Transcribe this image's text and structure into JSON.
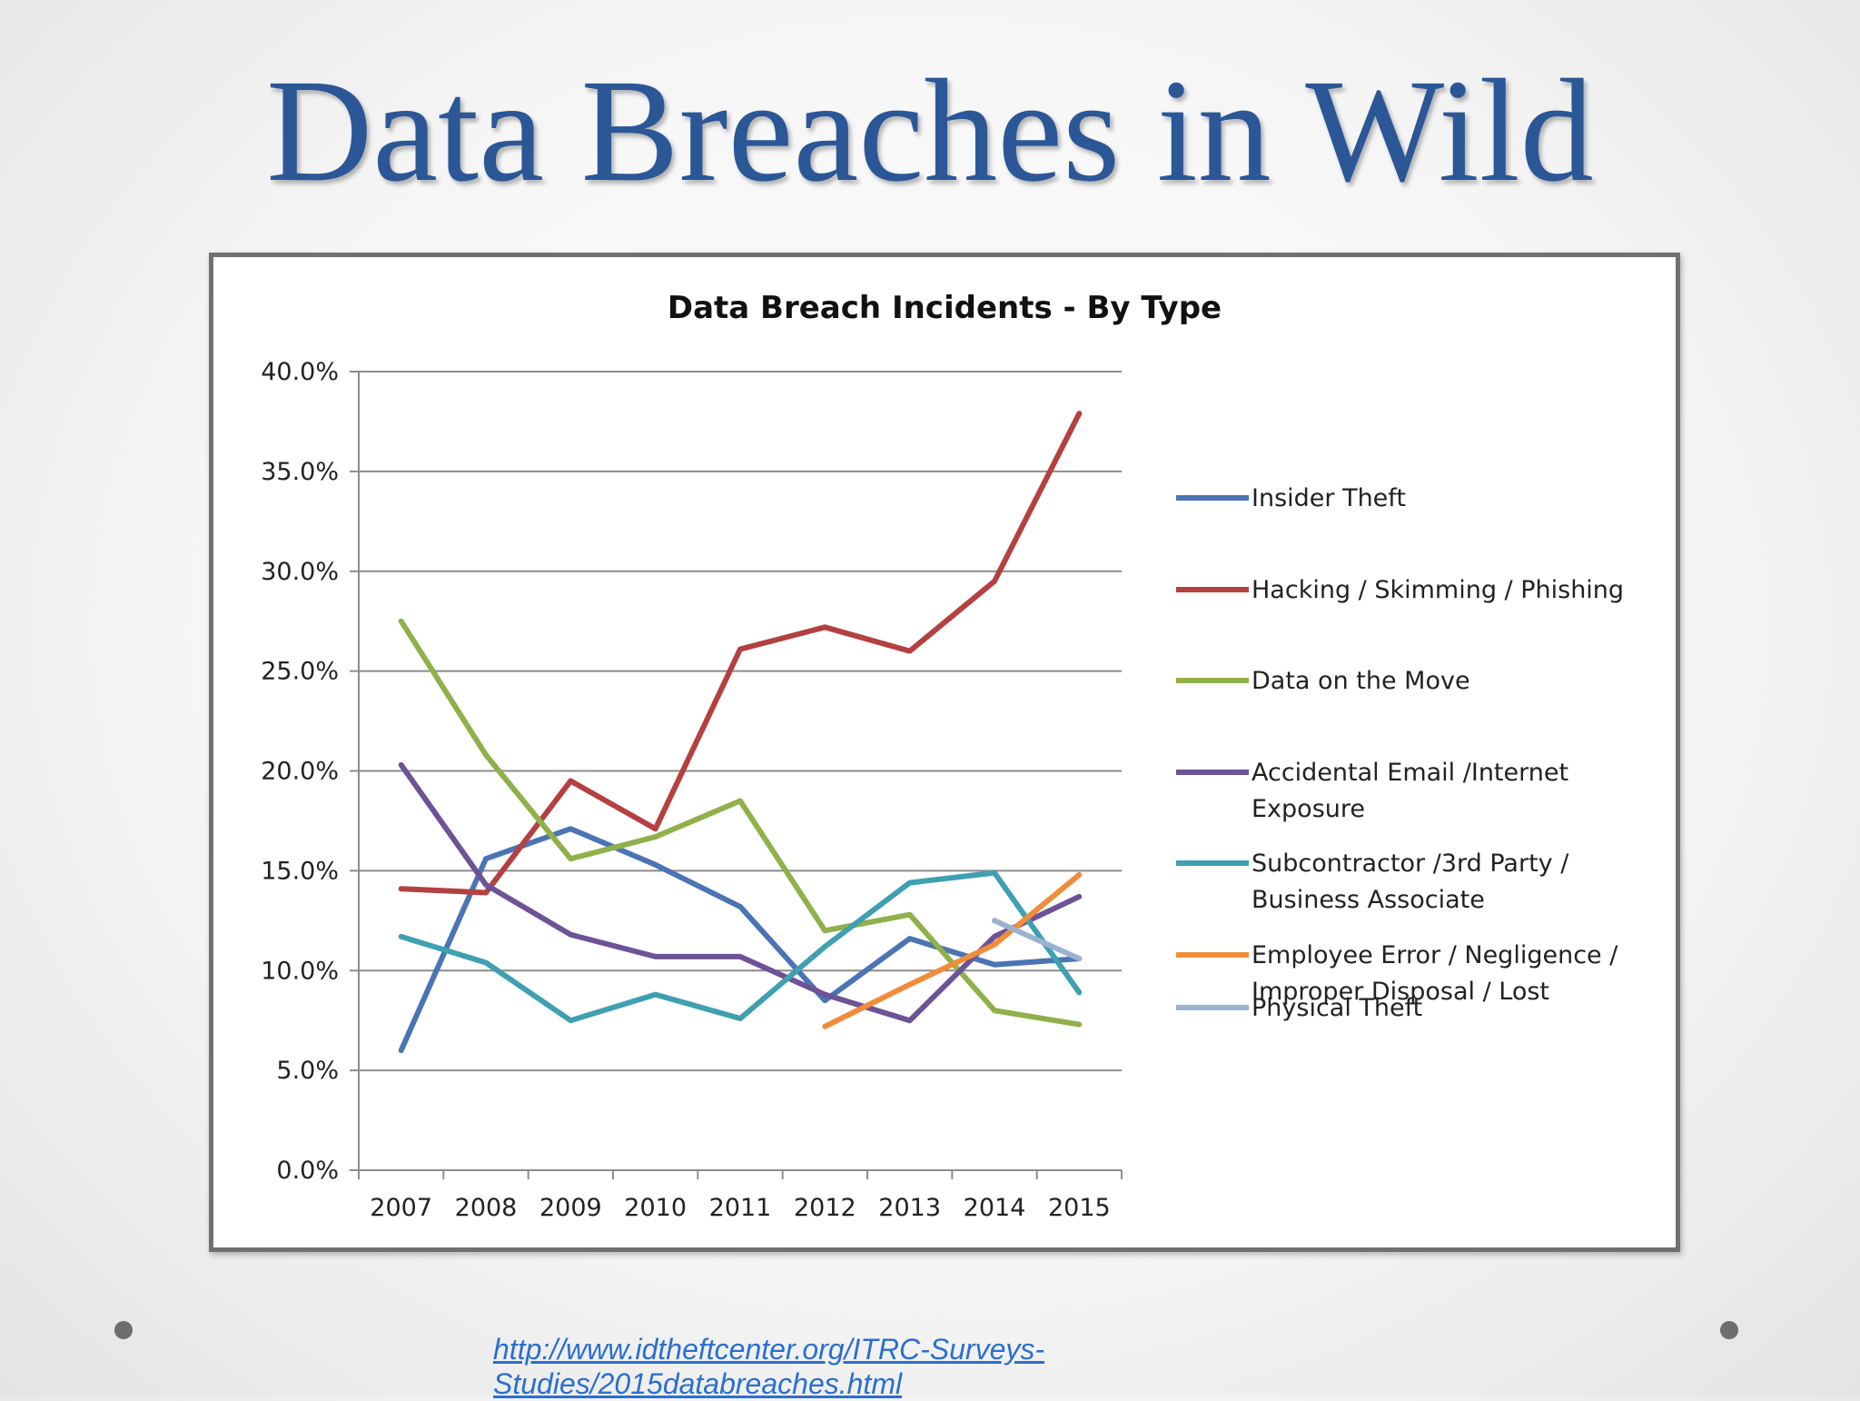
{
  "slide": {
    "title": "Data Breaches in Wild",
    "link_line1": "http://www.idtheftcenter.org/ITRC-Surveys-",
    "link_line2": "Studies/2015databreaches.html"
  },
  "colors": {
    "title": "#2b5797",
    "link": "#2a6fd0"
  },
  "chart_data": {
    "type": "line",
    "title": "Data Breach Incidents - By Type",
    "x": [
      "2007",
      "2008",
      "2009",
      "2010",
      "2011",
      "2012",
      "2013",
      "2014",
      "2015"
    ],
    "ylim": [
      0,
      40
    ],
    "yticks": [
      0,
      5,
      10,
      15,
      20,
      25,
      30,
      35,
      40
    ],
    "ytick_labels": [
      "0.0%",
      "5.0%",
      "10.0%",
      "15.0%",
      "20.0%",
      "25.0%",
      "30.0%",
      "35.0%",
      "40.0%"
    ],
    "grid": true,
    "legend_position": "right",
    "series": [
      {
        "name": "Insider Theft",
        "color": "#4a74b4",
        "values": [
          6.0,
          15.6,
          17.1,
          15.3,
          13.2,
          8.5,
          11.6,
          10.3,
          10.6
        ]
      },
      {
        "name": "Hacking / Skimming / Phishing",
        "color": "#b44040",
        "values": [
          14.1,
          13.9,
          19.5,
          17.1,
          26.1,
          27.2,
          26.0,
          29.5,
          37.9
        ]
      },
      {
        "name": "Data on the Move",
        "color": "#90b04a",
        "values": [
          27.5,
          20.8,
          15.6,
          16.7,
          18.5,
          12.0,
          12.8,
          8.0,
          7.3
        ]
      },
      {
        "name": "Accidental Email /Internet Exposure",
        "legend_lines": [
          "Accidental Email  /Internet",
          "Exposure"
        ],
        "color": "#6e5296",
        "values": [
          20.3,
          14.3,
          11.8,
          10.7,
          10.7,
          8.8,
          7.5,
          11.7,
          13.7
        ]
      },
      {
        "name": "Subcontractor /3rd Party / Business Associate",
        "legend_lines": [
          "Subcontractor /3rd Party /",
          "Business Associate"
        ],
        "color": "#3ea0b0",
        "values": [
          11.7,
          10.4,
          7.5,
          8.8,
          7.6,
          11.2,
          14.4,
          14.9,
          8.9
        ]
      },
      {
        "name": "Employee Error / Negligence / Improper Disposal / Lost",
        "legend_lines": [
          "Employee Error / Negligence /",
          "Improper Disposal / Lost"
        ],
        "color": "#f08c3a",
        "values": [
          null,
          null,
          null,
          null,
          null,
          7.2,
          9.3,
          11.3,
          14.8
        ]
      },
      {
        "name": "Physical Theft",
        "color": "#9ab2d0",
        "values": [
          null,
          null,
          null,
          null,
          null,
          null,
          null,
          12.5,
          10.6
        ]
      }
    ]
  }
}
